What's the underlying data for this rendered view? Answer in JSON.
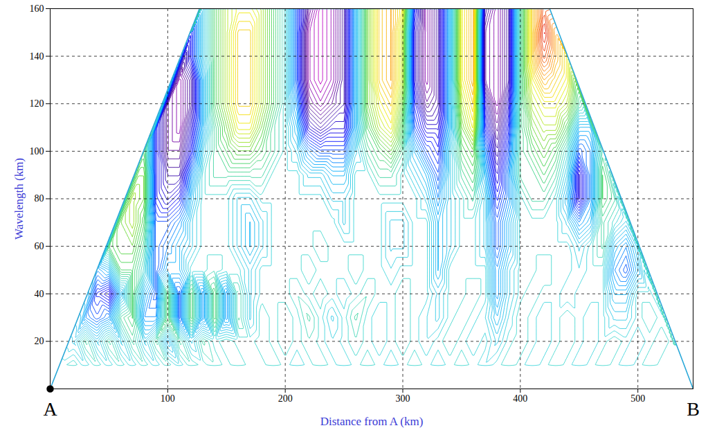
{
  "chart_data": {
    "type": "contour",
    "xlabel": "Distance from A (km)",
    "ylabel": "Wavelength (km)",
    "xlim": [
      0,
      547
    ],
    "ylim": [
      0,
      160
    ],
    "xticks": [
      100,
      200,
      300,
      400,
      500
    ],
    "yticks": [
      20,
      40,
      60,
      80,
      100,
      120,
      140,
      160
    ],
    "grid": true,
    "annotations": [
      {
        "text": "A",
        "x": 0,
        "marker": "dot"
      },
      {
        "text": "B",
        "x": 547
      }
    ],
    "cone": {
      "x": [
        0,
        127,
        425,
        547
      ],
      "y": [
        0,
        160,
        160,
        0
      ]
    },
    "x": [
      0,
      10,
      20,
      30,
      40,
      50,
      60,
      70,
      80,
      90,
      100,
      110,
      120,
      130,
      140,
      150,
      160,
      170,
      180,
      190,
      200,
      210,
      220,
      230,
      240,
      250,
      260,
      270,
      280,
      290,
      300,
      310,
      320,
      330,
      340,
      350,
      360,
      370,
      380,
      390,
      400,
      410,
      420,
      430,
      440,
      450,
      460,
      470,
      480,
      490,
      500,
      510,
      520,
      530,
      540
    ],
    "y": [
      10,
      20,
      30,
      40,
      50,
      60,
      70,
      80,
      90,
      100,
      110,
      120,
      130,
      140,
      150,
      160
    ],
    "values": [
      [
        null,
        0,
        0.05,
        -0.05,
        0.05,
        -0.05,
        0.05,
        -0.05,
        0.05,
        -0.05,
        0.05,
        -0.05,
        0.05,
        0,
        0.05,
        0,
        0.05,
        0,
        0,
        0.05,
        0,
        -0.05,
        0,
        0.05,
        0,
        -0.05,
        0,
        0.05,
        0,
        -0.05,
        0,
        0.05,
        0,
        -0.05,
        0,
        0.05,
        0,
        -0.05,
        0,
        0.05,
        0,
        -0.05,
        0,
        0.05,
        0,
        -0.05,
        0,
        0.05,
        0,
        -0.05,
        0,
        0.05,
        0,
        0,
        null
      ],
      [
        null,
        null,
        -0.1,
        0.1,
        -0.1,
        0.1,
        -0.1,
        0.1,
        -0.1,
        0.1,
        -0.2,
        0.1,
        -0.1,
        0.1,
        0,
        0.05,
        0,
        0,
        0.05,
        0,
        0.05,
        0,
        0.05,
        0,
        -0.05,
        0,
        0.05,
        0,
        -0.05,
        0,
        0.05,
        0,
        -0.05,
        0,
        0.05,
        0,
        -0.05,
        0,
        -0.1,
        0,
        0.05,
        0,
        -0.05,
        0,
        0.05,
        0,
        -0.05,
        0,
        0.05,
        0,
        -0.05,
        0,
        0.05,
        0,
        null
      ],
      [
        null,
        null,
        null,
        -0.3,
        -0.4,
        -0.3,
        0.1,
        0.2,
        -0.3,
        -0.3,
        0.2,
        -0.4,
        0.2,
        -0.3,
        0.2,
        -0.3,
        0.1,
        -0.1,
        0.05,
        0,
        0.05,
        0,
        0.1,
        0,
        -0.1,
        0,
        0.1,
        0,
        -0.05,
        0,
        0.05,
        0,
        -0.05,
        -0.1,
        0,
        0.05,
        0,
        -0.05,
        -0.2,
        -0.05,
        0.05,
        0,
        -0.05,
        0,
        0.05,
        0,
        -0.05,
        0,
        -0.1,
        -0.1,
        0,
        0.05,
        0,
        null,
        null
      ],
      [
        null,
        null,
        null,
        null,
        -0.5,
        -0.6,
        -0.2,
        0.2,
        -0.2,
        -0.4,
        0.2,
        -0.4,
        0.2,
        -0.3,
        0.2,
        -0.3,
        0.1,
        -0.1,
        0,
        0,
        0,
        0.05,
        0,
        0.05,
        0,
        -0.05,
        0,
        0.05,
        0,
        0,
        0.05,
        0,
        0,
        -0.1,
        0,
        0,
        0.05,
        0,
        -0.3,
        -0.1,
        0,
        0.05,
        0,
        0,
        -0.05,
        0,
        0,
        0,
        -0.2,
        -0.2,
        0,
        0,
        null,
        null,
        null
      ],
      [
        null,
        null,
        null,
        null,
        -0.3,
        -0.2,
        0.2,
        0.2,
        0,
        -0.4,
        -0.2,
        -0.2,
        0,
        0,
        0.05,
        0,
        0,
        -0.1,
        0,
        0,
        0,
        0,
        0.05,
        0,
        0,
        0,
        0.05,
        0,
        0,
        -0.05,
        0,
        0,
        0,
        -0.2,
        0,
        0,
        0,
        0,
        -0.3,
        -0.1,
        0,
        0,
        0.05,
        0,
        0,
        -0.05,
        0,
        0,
        -0.3,
        -0.4,
        -0.2,
        null,
        null,
        null,
        null
      ],
      [
        null,
        null,
        null,
        null,
        null,
        0.2,
        0.3,
        0.3,
        0.1,
        -0.4,
        -0.3,
        -0.2,
        -0.1,
        0,
        0,
        0,
        -0.1,
        -0.2,
        -0.1,
        0,
        0,
        0,
        0,
        0.05,
        0,
        0,
        0,
        0,
        0,
        -0.1,
        -0.1,
        0,
        0,
        -0.2,
        -0.1,
        0,
        0,
        -0.1,
        -0.4,
        -0.2,
        0,
        0,
        0,
        0,
        0,
        -0.1,
        0,
        0.1,
        -0.2,
        -0.3,
        -0.1,
        null,
        null,
        null,
        null
      ],
      [
        null,
        null,
        null,
        null,
        null,
        null,
        0.3,
        0.4,
        0.2,
        -0.4,
        -0.4,
        -0.3,
        -0.1,
        0,
        0,
        0,
        -0.1,
        -0.2,
        -0.1,
        0,
        0,
        0,
        0,
        0,
        0,
        -0.1,
        0,
        0,
        0,
        -0.1,
        -0.1,
        0,
        0,
        -0.2,
        -0.1,
        0,
        0,
        -0.1,
        -0.4,
        -0.2,
        0,
        0,
        0,
        0,
        -0.1,
        -0.3,
        -0.2,
        0.1,
        0,
        -0.1,
        null,
        null,
        null,
        null,
        null
      ],
      [
        null,
        null,
        null,
        null,
        null,
        null,
        null,
        0.4,
        0.3,
        -0.5,
        -0.6,
        -0.5,
        -0.2,
        0,
        0,
        0,
        -0.1,
        -0.1,
        0,
        0,
        0,
        0,
        0,
        0,
        -0.1,
        -0.1,
        0,
        0,
        0,
        0,
        0,
        0,
        -0.1,
        -0.3,
        -0.1,
        0,
        0.1,
        -0.1,
        -0.5,
        -0.3,
        0,
        0.1,
        0.1,
        0,
        -0.2,
        -0.6,
        -0.3,
        0.2,
        0.1,
        null,
        null,
        null,
        null,
        null,
        null
      ],
      [
        null,
        null,
        null,
        null,
        null,
        null,
        null,
        null,
        0.3,
        -0.5,
        -0.7,
        -0.7,
        -0.3,
        0,
        0.1,
        0.1,
        0.1,
        0.1,
        0.1,
        0,
        0,
        0,
        -0.1,
        -0.1,
        -0.2,
        -0.2,
        0,
        0,
        0.1,
        0.1,
        0,
        -0.1,
        -0.2,
        -0.4,
        -0.1,
        0.1,
        0.2,
        -0.2,
        -0.6,
        -0.3,
        0.1,
        0.1,
        0.2,
        0.1,
        -0.1,
        -0.6,
        -0.3,
        0.2,
        null,
        null,
        null,
        null,
        null,
        null,
        null
      ],
      [
        null,
        null,
        null,
        null,
        null,
        null,
        null,
        null,
        0.2,
        -0.5,
        -0.8,
        -0.8,
        -0.5,
        -0.1,
        0.1,
        0.2,
        0.3,
        0.3,
        0.2,
        0.1,
        0,
        -0.1,
        -0.3,
        -0.4,
        -0.4,
        -0.4,
        -0.1,
        0.1,
        0.2,
        0.3,
        0.1,
        -0.2,
        -0.4,
        -0.5,
        -0.1,
        0.2,
        0.3,
        -0.3,
        -0.7,
        -0.4,
        0.1,
        0.2,
        0.3,
        0.2,
        0,
        -0.4,
        -0.3,
        0.1,
        null,
        null,
        null,
        null,
        null,
        null,
        null
      ],
      [
        null,
        null,
        null,
        null,
        null,
        null,
        null,
        null,
        null,
        -0.5,
        -0.8,
        -0.9,
        -0.6,
        -0.2,
        0.1,
        0.3,
        0.5,
        0.5,
        0.3,
        0.1,
        0,
        -0.2,
        -0.6,
        -0.7,
        -0.6,
        -0.6,
        -0.2,
        0.2,
        0.4,
        0.5,
        0.2,
        -0.4,
        -0.6,
        -0.6,
        -0.2,
        0.3,
        0.5,
        -0.5,
        -0.8,
        -0.5,
        0.1,
        0.3,
        0.4,
        0.4,
        0.2,
        -0.2,
        -0.2,
        null,
        null,
        null,
        null,
        null,
        null,
        null,
        null
      ],
      [
        null,
        null,
        null,
        null,
        null,
        null,
        null,
        null,
        null,
        null,
        -0.8,
        -0.9,
        -0.7,
        -0.2,
        0.2,
        0.4,
        0.6,
        0.6,
        0.4,
        0.2,
        0,
        -0.3,
        -0.8,
        -0.9,
        -0.8,
        -0.7,
        -0.2,
        0.3,
        0.5,
        0.6,
        0.3,
        -0.5,
        -0.8,
        -0.7,
        -0.2,
        0.4,
        0.6,
        -0.6,
        -0.9,
        -0.6,
        0.1,
        0.4,
        0.5,
        0.5,
        0.4,
        0.1,
        null,
        null,
        null,
        null,
        null,
        null,
        null,
        null,
        null
      ],
      [
        null,
        null,
        null,
        null,
        null,
        null,
        null,
        null,
        null,
        null,
        null,
        -0.9,
        -0.7,
        -0.2,
        0.2,
        0.4,
        0.6,
        0.6,
        0.4,
        0.2,
        0,
        -0.4,
        -0.9,
        -1,
        -0.9,
        -0.7,
        -0.2,
        0.3,
        0.6,
        0.7,
        0.4,
        -0.6,
        -0.9,
        -0.7,
        -0.2,
        0.5,
        0.7,
        -0.8,
        -0.9,
        -0.7,
        0.1,
        0.5,
        0.7,
        0.6,
        0.5,
        null,
        null,
        null,
        null,
        null,
        null,
        null,
        null,
        null,
        null
      ],
      [
        null,
        null,
        null,
        null,
        null,
        null,
        null,
        null,
        null,
        null,
        null,
        null,
        -0.5,
        -0.1,
        0.2,
        0.4,
        0.6,
        0.6,
        0.4,
        0.2,
        0,
        -0.4,
        -0.9,
        -1,
        -0.9,
        -0.7,
        -0.2,
        0.3,
        0.6,
        0.7,
        0.4,
        -0.6,
        -0.9,
        -0.7,
        -0.2,
        0.5,
        0.7,
        -0.8,
        -0.9,
        -0.7,
        0.1,
        0.6,
        0.9,
        0.7,
        0.5,
        null,
        null,
        null,
        null,
        null,
        null,
        null,
        null,
        null,
        null
      ],
      [
        null,
        null,
        null,
        null,
        null,
        null,
        null,
        null,
        null,
        null,
        null,
        null,
        -0.5,
        -0.1,
        0.2,
        0.4,
        0.6,
        0.6,
        0.4,
        0.2,
        0,
        -0.4,
        -0.9,
        -1,
        -0.9,
        -0.7,
        -0.2,
        0.3,
        0.6,
        0.7,
        0.4,
        -0.6,
        -0.9,
        -0.7,
        -0.2,
        0.5,
        0.7,
        -0.8,
        -0.9,
        -0.7,
        0.1,
        0.6,
        1,
        0.7,
        null,
        null,
        null,
        null,
        null,
        null,
        null,
        null,
        null,
        null,
        null
      ],
      [
        null,
        null,
        null,
        null,
        null,
        null,
        null,
        null,
        null,
        null,
        null,
        null,
        null,
        -0.1,
        0.2,
        0.4,
        0.5,
        0.5,
        0.4,
        0.2,
        0,
        -0.4,
        -0.8,
        -1,
        -0.9,
        -0.7,
        -0.2,
        0.3,
        0.6,
        0.7,
        0.5,
        -0.5,
        -0.9,
        -0.7,
        -0.2,
        0.5,
        0.7,
        -0.7,
        -0.9,
        -0.7,
        0.1,
        0.6,
        0.9,
        null,
        null,
        null,
        null,
        null,
        null,
        null,
        null,
        null,
        null,
        null,
        null
      ]
    ]
  }
}
